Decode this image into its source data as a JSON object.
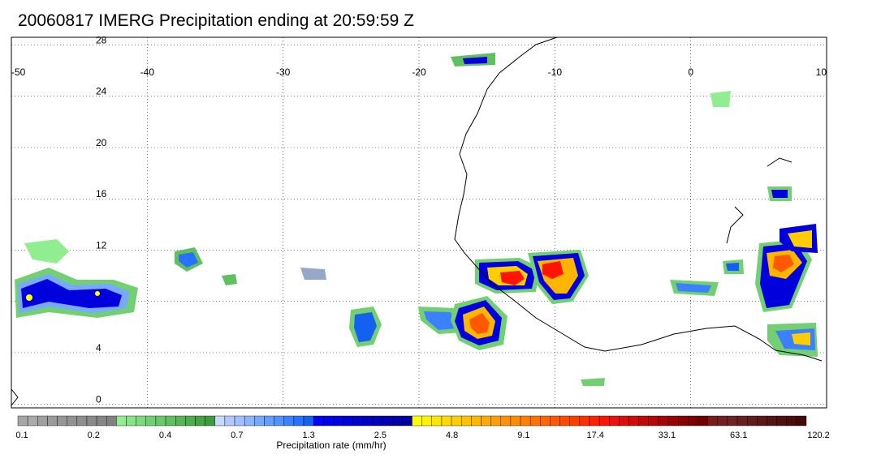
{
  "title": "20060817 IMERG Precipitation ending at 20:59:59 Z",
  "map": {
    "lon_range": [
      -50,
      10
    ],
    "lat_range": [
      -0.3,
      28.6
    ],
    "lon_ticks": [
      "-50",
      "-40",
      "-30",
      "-20",
      "-10",
      "0",
      "10"
    ],
    "lat_ticks": [
      "28",
      "24",
      "20",
      "16",
      "12",
      "8",
      "4",
      "0"
    ],
    "grid": "dotted"
  },
  "colorbar": {
    "caption": "Precipitation rate (mm/hr)",
    "tick_labels": [
      "0.1",
      "0.2",
      "0.4",
      "0.7",
      "1.3",
      "2.5",
      "4.8",
      "9.1",
      "17.4",
      "33.1",
      "63.1",
      "120.2"
    ],
    "colors": [
      "#a6a6a6",
      "#aaaaaa",
      "#a0a0a0",
      "#9a9a9a",
      "#969696",
      "#929292",
      "#8e8e8e",
      "#8a8a8a",
      "#868686",
      "#828282",
      "#90ee90",
      "#86e486",
      "#7cda7c",
      "#72d072",
      "#69c869",
      "#60c060",
      "#56b656",
      "#4cad4c",
      "#44a444",
      "#3c9c3c",
      "#c8d8ff",
      "#b4c8ff",
      "#a0c0ff",
      "#8cb4ff",
      "#78a8ff",
      "#649cff",
      "#5090ff",
      "#3c80ff",
      "#2870ff",
      "#1460f0",
      "#0000ff",
      "#0000f0",
      "#0000e6",
      "#0000dc",
      "#0000d2",
      "#0000c8",
      "#0000be",
      "#0000b4",
      "#0000aa",
      "#0000a0",
      "#ffff00",
      "#fff200",
      "#ffe600",
      "#ffda00",
      "#ffce00",
      "#ffc200",
      "#ffb600",
      "#ffaa00",
      "#ff9e00",
      "#ff9200",
      "#ff8c00",
      "#ff7f00",
      "#ff7200",
      "#ff6500",
      "#ff5800",
      "#ff4b00",
      "#ff3e00",
      "#ff3000",
      "#ff2200",
      "#ff1400",
      "#ee1010",
      "#e00c0c",
      "#d20a0a",
      "#c40808",
      "#b60606",
      "#a80404",
      "#9a0202",
      "#8c0000",
      "#7e0000",
      "#700000",
      "#7a1a1a",
      "#742020",
      "#6e2424",
      "#682020",
      "#621c1c",
      "#5c1818",
      "#561414",
      "#501010",
      "#4a0c0c",
      "#440808"
    ]
  }
}
